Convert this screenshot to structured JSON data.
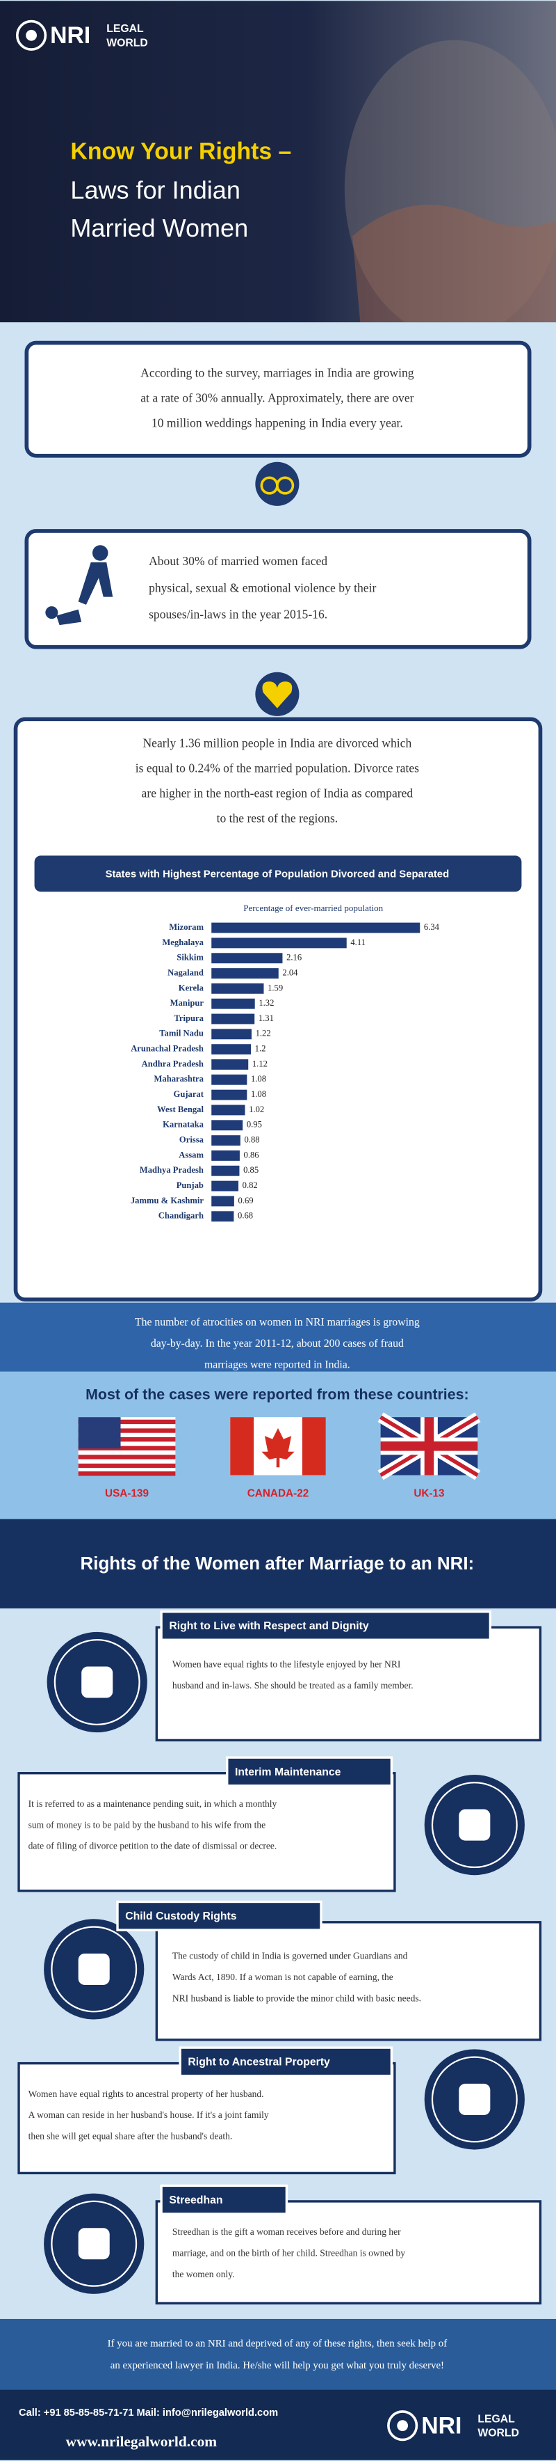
{
  "header": {
    "logo": [
      "NRI",
      "LEGAL",
      "WORLD"
    ],
    "title": "Know Your Rights –",
    "subtitle": [
      "Laws for Indian",
      "Married Women"
    ]
  },
  "intro": [
    "According to the survey, marriages in India are growing",
    "at a rate of 30% annually. Approximately, there are over",
    "10 million weddings happening in India every year."
  ],
  "violence": [
    "About 30% of married women faced",
    "physical, sexual & emotional violence by their",
    "spouses/in-laws in the year 2015-16."
  ],
  "divorce": [
    "Nearly 1.36 million people in India are divorced which",
    "is equal to 0.24% of the married population. Divorce rates",
    "are higher in the north-east region of India as compared",
    "to the rest of the regions."
  ],
  "chart_data": {
    "type": "bar",
    "orientation": "horizontal",
    "title": "States with Highest Percentage of Population Divorced and Separated",
    "x_label": "Percentage of ever-married population",
    "categories": [
      "Mizoram",
      "Meghalaya",
      "Sikkim",
      "Nagaland",
      "Kerela",
      "Manipur",
      "Tripura",
      "Tamil Nadu",
      "Arunachal Pradesh",
      "Andhra Pradesh",
      "Maharashtra",
      "Gujarat",
      "West Bengal",
      "Karnataka",
      "Orissa",
      "Assam",
      "Madhya Pradesh",
      "Punjab",
      "Jammu & Kashmir",
      "Chandigarh"
    ],
    "values": [
      6.34,
      4.11,
      2.16,
      2.04,
      1.59,
      1.32,
      1.31,
      1.22,
      1.2,
      1.12,
      1.08,
      1.08,
      1.02,
      0.95,
      0.88,
      0.86,
      0.85,
      0.82,
      0.69,
      0.68
    ],
    "color": "#1f3c78",
    "xlim": [
      0,
      7
    ]
  },
  "atrocities": [
    "The number of atrocities on women in NRI marriages is growing",
    "day-by-day. In the year 2011-12, about 200 cases of fraud",
    "marriages were reported in India."
  ],
  "countries": {
    "title": "Most of the cases were reported from these countries:",
    "items": [
      "USA-139",
      "CANADA-22",
      "UK-13"
    ]
  },
  "rights": {
    "title": "Rights of the Women after Marriage to an NRI:",
    "items": [
      {
        "title": "Right to Live with Respect and Dignity",
        "lines": [
          "Women have equal rights to the lifestyle enjoyed by her NRI",
          "husband and in-laws. She should be treated as a family member."
        ]
      },
      {
        "title": "Interim Maintenance",
        "lines": [
          "It is referred to as a maintenance pending suit, in which a monthly",
          "sum of money is to be paid by the husband to his wife from the",
          "date of filing of divorce petition to the date of dismissal or decree."
        ]
      },
      {
        "title": "Child Custody Rights",
        "lines": [
          "The custody of child in India is governed under Guardians and",
          "Wards Act, 1890. If a woman is not capable of earning, the",
          "NRI husband is liable to provide the minor child with basic needs."
        ]
      },
      {
        "title": "Right to Ancestral Property",
        "lines": [
          "Women have equal rights to ancestral property of her husband.",
          "A woman can reside in her husband's house. If it's a joint family",
          "then she will get equal share after the husband's death."
        ]
      },
      {
        "title": "Streedhan",
        "lines": [
          "Streedhan is the gift a woman receives before and during her",
          "marriage, and on the birth of her child. Streedhan is owned by",
          "the women only."
        ]
      }
    ]
  },
  "cta": [
    "If you are married to an NRI and deprived of any of these rights, then seek help of",
    "an experienced lawyer in India. He/she will help you get what you truly deserve!"
  ],
  "footer": {
    "contact": "Call: +91 85-85-85-71-71   Mail: info@nrilegalworld.com",
    "website": "www.nrilegalworld.com"
  }
}
